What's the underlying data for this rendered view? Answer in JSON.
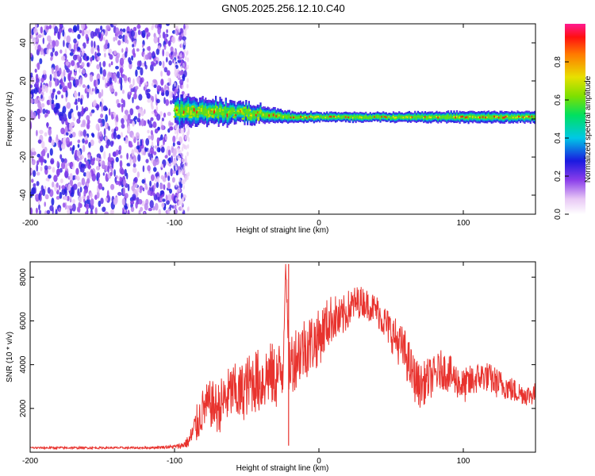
{
  "title": "GN05.2025.256.12.10.C40",
  "chart_data": [
    {
      "type": "heatmap",
      "title": "GN05.2025.256.12.10.C40",
      "xlabel": "Height of straight line (km)",
      "ylabel": "Frequency (Hz)",
      "xlim": [
        -200,
        150
      ],
      "ylim": [
        -50,
        50
      ],
      "xticks": [
        -200,
        -100,
        0,
        100
      ],
      "yticks": [
        -40,
        -20,
        0,
        20,
        40
      ],
      "colorbar": {
        "label": "Normalized spectral amplitude",
        "range": [
          0.0,
          1.0
        ],
        "ticks": [
          0.0,
          0.2,
          0.4,
          0.6,
          0.8
        ]
      },
      "regions": [
        {
          "name": "noise",
          "x_range": [
            -200,
            -100
          ],
          "freq_range": [
            -50,
            50
          ],
          "amplitude": 0.25
        },
        {
          "name": "signal-band",
          "x_range": [
            -100,
            150
          ],
          "center_freq_hz": [
            4,
            3,
            1,
            1,
            1,
            1,
            1
          ],
          "center_at_km": [
            -100,
            -50,
            -20,
            0,
            50,
            100,
            150
          ],
          "half_width_hz": [
            8,
            5,
            3,
            2.5,
            2.5,
            3,
            3
          ],
          "peak_amplitude": 1.0
        }
      ]
    },
    {
      "type": "line",
      "title": "",
      "xlabel": "Height of straight line (km)",
      "ylabel": "SNR (10 * v/v)",
      "xlim": [
        -200,
        150
      ],
      "ylim": [
        0,
        8700
      ],
      "xticks": [
        -200,
        -100,
        0,
        100
      ],
      "yticks": [
        2000,
        4000,
        6000,
        8000
      ],
      "series": [
        {
          "name": "SNR",
          "color": "#e8332e",
          "x": [
            -200,
            -180,
            -160,
            -140,
            -120,
            -100,
            -95,
            -90,
            -85,
            -80,
            -75,
            -70,
            -65,
            -60,
            -55,
            -50,
            -45,
            -40,
            -35,
            -30,
            -25,
            -23,
            -21,
            -20,
            -15,
            -10,
            -5,
            0,
            5,
            10,
            15,
            20,
            25,
            30,
            35,
            40,
            45,
            50,
            55,
            60,
            65,
            70,
            75,
            80,
            85,
            90,
            95,
            100,
            105,
            110,
            115,
            120,
            125,
            130,
            135,
            140,
            145,
            150
          ],
          "values": [
            200,
            200,
            200,
            200,
            200,
            250,
            300,
            500,
            1200,
            2000,
            2200,
            2000,
            2400,
            2800,
            2600,
            3000,
            3300,
            3200,
            3600,
            3400,
            3800,
            8600,
            4200,
            4000,
            4500,
            4800,
            5000,
            5200,
            5800,
            6200,
            6000,
            6500,
            6800,
            6900,
            6700,
            6500,
            6000,
            5500,
            5000,
            4500,
            3500,
            3000,
            3300,
            3500,
            3800,
            3600,
            3300,
            3000,
            3200,
            3400,
            3500,
            3300,
            3100,
            3000,
            2800,
            2700,
            2600,
            2700
          ],
          "noise_amplitude": [
            50,
            50,
            50,
            50,
            50,
            80,
            150,
            300,
            900,
            1000,
            1100,
            1200,
            1300,
            1300,
            1400,
            1400,
            1500,
            1500,
            1500,
            1500,
            1500,
            0,
            1500,
            1500,
            1500,
            1500,
            1400,
            1300,
            1200,
            1100,
            1000,
            900,
            800,
            700,
            700,
            700,
            800,
            900,
            1000,
            1100,
            1100,
            1000,
            1000,
            900,
            900,
            900,
            800,
            800,
            800,
            700,
            700,
            700,
            700,
            600,
            600,
            500,
            500,
            500
          ]
        }
      ]
    }
  ]
}
